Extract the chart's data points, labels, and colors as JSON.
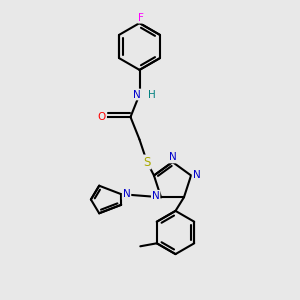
{
  "bg_color": "#e8e8e8",
  "bond_color": "#000000",
  "atom_colors": {
    "F": "#ff00ff",
    "N": "#0000cc",
    "O": "#ff0000",
    "S": "#aaaa00",
    "H": "#008080",
    "C": "#000000"
  }
}
